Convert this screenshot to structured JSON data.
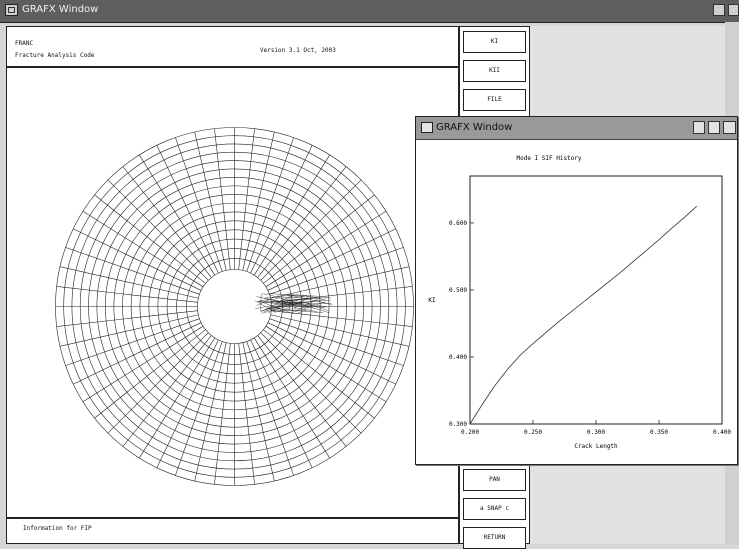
{
  "main_window": {
    "title": "GRAFX Window",
    "program_name": "FRANC",
    "program_description": "Fracture Analysis Code",
    "version": "Version 3.1  Oct, 2003",
    "info_text": "Information for FIP"
  },
  "menu": {
    "buttons": [
      {
        "label": "KI"
      },
      {
        "label": "KII"
      },
      {
        "label": "FILE"
      },
      {
        "label": "PAN"
      },
      {
        "label": "a  SNAP  c"
      },
      {
        "label": "RETURN"
      }
    ]
  },
  "sub_window": {
    "title": "GRAFX Window"
  },
  "chart_data": {
    "type": "line",
    "title": "Mode I SIF History",
    "xlabel": "Crack Length",
    "ylabel": "KI",
    "xlim": [
      0.2,
      0.4
    ],
    "ylim": [
      0.3,
      0.67
    ],
    "x_ticks": [
      "0.200",
      "0.250",
      "0.300",
      "0.350",
      "0.400"
    ],
    "y_ticks": [
      "0.300",
      "0.400",
      "0.500",
      "0.600"
    ],
    "x_tick_values": [
      0.2,
      0.25,
      0.3,
      0.35,
      0.4
    ],
    "y_tick_values": [
      0.3,
      0.4,
      0.5,
      0.6
    ],
    "series": [
      {
        "x": [
          0.2,
          0.21,
          0.22,
          0.23,
          0.24,
          0.25,
          0.26,
          0.27,
          0.28,
          0.29,
          0.3,
          0.31,
          0.32,
          0.33,
          0.34,
          0.35,
          0.36,
          0.37,
          0.38
        ],
        "y": [
          0.3,
          0.33,
          0.358,
          0.382,
          0.403,
          0.42,
          0.436,
          0.452,
          0.467,
          0.482,
          0.497,
          0.512,
          0.527,
          0.543,
          0.559,
          0.575,
          0.592,
          0.608,
          0.625
        ]
      }
    ]
  }
}
